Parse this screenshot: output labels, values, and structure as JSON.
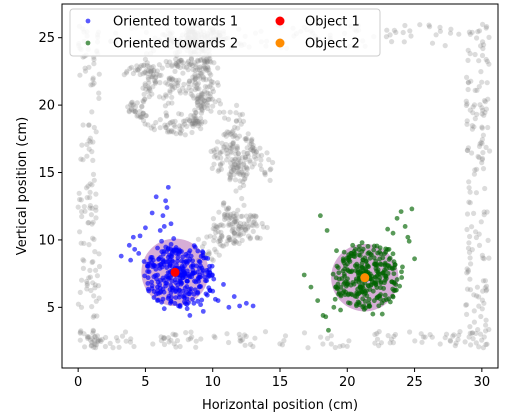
{
  "chart_data": {
    "type": "scatter",
    "xlabel": "Horizontal position (cm)",
    "ylabel": "Vertical position (cm)",
    "xlim": [
      -1.2,
      31.2
    ],
    "ylim": [
      0.5,
      27.5
    ],
    "x_ticks": [
      0,
      5,
      10,
      15,
      20,
      25,
      30
    ],
    "y_ticks": [
      5,
      10,
      15,
      20,
      25
    ],
    "grid": false,
    "legend": {
      "placement": "upper-left",
      "columns": 2,
      "entries": [
        {
          "label": "Oriented towards 1",
          "color": "#0000ff",
          "marker": "small-dot"
        },
        {
          "label": "Oriented towards 2",
          "color": "#006400",
          "marker": "small-dot"
        },
        {
          "label": "Object 1",
          "color": "#ff0000",
          "marker": "dot"
        },
        {
          "label": "Object 2",
          "color": "#ff8c00",
          "marker": "dot"
        }
      ]
    },
    "background_track": {
      "color": "#808080",
      "x_range": [
        0,
        30.5
      ],
      "y_range": [
        2,
        26
      ]
    },
    "zones": [
      {
        "center": [
          7.2,
          7.6
        ],
        "radius": 2.5,
        "color": "#800080"
      },
      {
        "center": [
          21.3,
          7.2
        ],
        "radius": 2.5,
        "color": "#800080"
      }
    ],
    "series": [
      {
        "name": "Oriented towards 1",
        "color": "#0000ff",
        "center": [
          7.5,
          7.4
        ],
        "x": [
          3.2,
          3.8,
          4.1,
          4.5,
          4.9,
          5.2,
          5.5,
          5.7,
          5.9,
          6.1,
          6.3,
          6.5,
          6.7,
          6.9,
          7.1,
          7.3,
          7.5,
          7.7,
          7.9,
          8.1,
          8.3,
          8.5,
          8.7,
          8.9,
          9.1,
          9.3,
          9.5,
          9.7,
          10.0,
          10.4,
          10.8,
          11.2,
          11.6,
          12.0,
          12.5,
          13.0,
          6.0,
          6.2,
          6.4,
          6.6,
          5.8,
          5.5,
          5.0,
          4.6,
          4.2,
          3.9,
          6.8,
          7.0,
          8.0,
          8.4,
          9.0,
          9.6,
          10.2,
          6.4,
          6.1,
          5.9,
          7.8,
          8.2,
          8.6,
          9.2
        ],
        "y": [
          8.8,
          9.6,
          10.2,
          9.0,
          8.4,
          7.2,
          6.6,
          8.1,
          9.4,
          10.7,
          11.8,
          12.9,
          13.9,
          11.2,
          10.1,
          9.0,
          7.9,
          6.8,
          5.7,
          4.9,
          4.4,
          5.6,
          6.3,
          7.1,
          5.2,
          4.7,
          6.0,
          7.4,
          6.2,
          5.5,
          6.7,
          5.0,
          5.8,
          5.1,
          5.3,
          5.1,
          8.6,
          9.9,
          11.0,
          12.4,
          13.2,
          12.0,
          10.9,
          10.3,
          9.3,
          8.5,
          8.2,
          9.1,
          8.4,
          8.8,
          6.5,
          5.9,
          5.6,
          4.9,
          6.1,
          7.4,
          7.2,
          6.0,
          5.3,
          7.9
        ]
      },
      {
        "name": "Oriented towards 2",
        "color": "#006400",
        "center": [
          21.5,
          7.3
        ],
        "x": [
          16.8,
          17.3,
          17.8,
          18.2,
          18.6,
          19.0,
          19.4,
          19.8,
          20.1,
          20.4,
          20.7,
          21.0,
          21.3,
          21.6,
          21.9,
          22.2,
          22.5,
          22.8,
          23.1,
          23.4,
          23.7,
          24.0,
          24.3,
          24.6,
          25.0,
          18.0,
          18.5,
          19.2,
          19.7,
          20.2,
          20.6,
          21.1,
          21.8,
          22.3,
          22.7,
          23.2,
          23.6,
          24.1,
          24.5,
          24.8,
          18.4,
          19.5,
          20.9,
          22.0,
          22.4,
          23.0,
          21.4,
          20.0,
          19.1,
          22.6
        ],
        "y": [
          7.4,
          6.5,
          5.5,
          4.4,
          3.3,
          5.0,
          6.1,
          7.3,
          8.9,
          9.6,
          8.2,
          7.0,
          6.2,
          5.3,
          4.5,
          5.7,
          6.9,
          8.1,
          9.3,
          10.5,
          11.6,
          12.1,
          11.0,
          9.9,
          8.6,
          11.8,
          10.7,
          9.2,
          8.6,
          8.4,
          9.3,
          9.8,
          8.9,
          7.6,
          6.4,
          5.4,
          6.7,
          8.0,
          10.2,
          12.3,
          4.3,
          4.8,
          5.2,
          6.8,
          9.1,
          10.8,
          8.4,
          6.7,
          5.6,
          4.5
        ]
      }
    ],
    "objects": [
      {
        "name": "Object 1",
        "color": "#ff0000",
        "x": 7.2,
        "y": 7.6
      },
      {
        "name": "Object 2",
        "color": "#ff8c00",
        "x": 21.3,
        "y": 7.2
      }
    ]
  }
}
